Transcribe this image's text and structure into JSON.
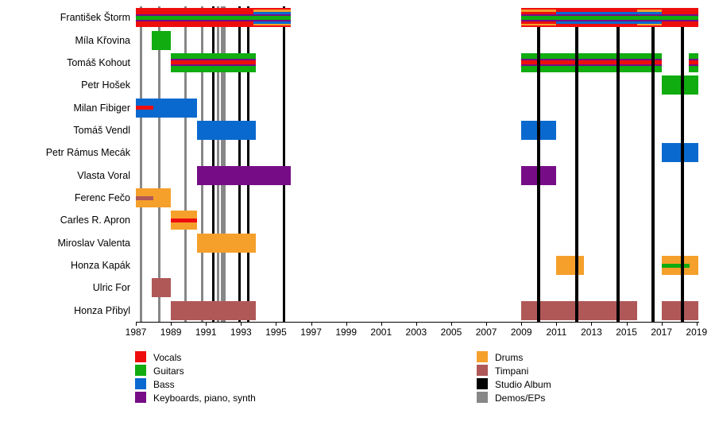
{
  "chart_data": {
    "type": "timeline",
    "description": "Band membership timeline: members on y-axis, years on x-axis, colored bars for instrument roles, vertical lines for releases",
    "axis": {
      "start": 1987,
      "end": 2019.1,
      "tick_years": [
        1987,
        1989,
        1991,
        1993,
        1995,
        1997,
        1999,
        2001,
        2003,
        2005,
        2007,
        2009,
        2011,
        2013,
        2015,
        2017,
        2019
      ]
    },
    "colors": {
      "vocals": "#ee0d0d",
      "guitars": "#10ac10",
      "bass": "#0a69cf",
      "keyboards": "#760d86",
      "drums": "#f5a02b",
      "timpani": "#b05858",
      "album": "#000000",
      "demo": "#878787"
    },
    "rows": [
      {
        "name": "František Štorm",
        "bars": [
          {
            "role": "vocals",
            "from": 1987,
            "to": 1995.85,
            "stripes": [
              {
                "role": "keyboards",
                "slot": "inner",
                "from": 1987,
                "to": 1995.85
              },
              {
                "role": "guitars",
                "slot": "center",
                "from": 1987,
                "to": 1995.85
              },
              {
                "role": "bass",
                "slot": "mid",
                "from": 1993.7,
                "to": 1995.85
              },
              {
                "role": "drums",
                "slot": "outer",
                "from": 1993.7,
                "to": 1995.85
              }
            ]
          },
          {
            "role": "vocals",
            "from": 2009,
            "to": 2019.1,
            "stripes": [
              {
                "role": "keyboards",
                "slot": "inner",
                "from": 2009,
                "to": 2019.1
              },
              {
                "role": "guitars",
                "slot": "center",
                "from": 2009,
                "to": 2019.1
              },
              {
                "role": "drums",
                "slot": "outer",
                "from": 2009,
                "to": 2011
              },
              {
                "role": "bass",
                "slot": "mid",
                "from": 2011,
                "to": 2017
              },
              {
                "role": "drums",
                "slot": "outer",
                "from": 2015.6,
                "to": 2017
              }
            ]
          }
        ]
      },
      {
        "name": "Míla Křovina",
        "bars": [
          {
            "role": "guitars",
            "from": 1987.9,
            "to": 1989.0,
            "stripes": []
          }
        ]
      },
      {
        "name": "Tomáš Kohout",
        "bars": [
          {
            "role": "guitars",
            "from": 1989.0,
            "to": 1993.85,
            "stripes": [
              {
                "role": "keyboards",
                "slot": "inner",
                "from": 1989.0,
                "to": 1993.85
              },
              {
                "role": "vocals",
                "slot": "center",
                "from": 1989.0,
                "to": 1993.85
              }
            ]
          },
          {
            "role": "guitars",
            "from": 2009,
            "to": 2017.0,
            "stripes": [
              {
                "role": "keyboards",
                "slot": "inner",
                "from": 2009,
                "to": 2017.0
              },
              {
                "role": "vocals",
                "slot": "center",
                "from": 2009,
                "to": 2017.0
              }
            ]
          },
          {
            "role": "guitars",
            "from": 2018.55,
            "to": 2019.1,
            "stripes": [
              {
                "role": "keyboards",
                "slot": "inner",
                "from": 2018.55,
                "to": 2019.1
              },
              {
                "role": "vocals",
                "slot": "center",
                "from": 2018.55,
                "to": 2019.1
              }
            ]
          }
        ]
      },
      {
        "name": "Petr Hošek",
        "bars": [
          {
            "role": "guitars",
            "from": 2017.0,
            "to": 2019.1,
            "stripes": []
          }
        ]
      },
      {
        "name": "Milan Fibiger",
        "bars": [
          {
            "role": "bass",
            "from": 1987,
            "to": 1990.5,
            "stripes": [
              {
                "role": "vocals",
                "slot": "center",
                "from": 1987,
                "to": 1988.0
              }
            ]
          }
        ]
      },
      {
        "name": "Tomáš Vendl",
        "bars": [
          {
            "role": "bass",
            "from": 1990.5,
            "to": 1993.85,
            "stripes": []
          },
          {
            "role": "bass",
            "from": 2009,
            "to": 2011.0,
            "stripes": []
          }
        ]
      },
      {
        "name": "Petr Rámus Mecák",
        "bars": [
          {
            "role": "bass",
            "from": 2017.0,
            "to": 2019.1,
            "stripes": []
          }
        ]
      },
      {
        "name": "Vlasta Voral",
        "bars": [
          {
            "role": "keyboards",
            "from": 1990.5,
            "to": 1995.85,
            "stripes": []
          },
          {
            "role": "keyboards",
            "from": 2009,
            "to": 2011.0,
            "stripes": []
          }
        ]
      },
      {
        "name": "Ferenc Fečo",
        "bars": [
          {
            "role": "drums",
            "from": 1987,
            "to": 1989.0,
            "stripes": [
              {
                "role": "timpani",
                "slot": "center",
                "from": 1987,
                "to": 1988.0
              }
            ]
          }
        ]
      },
      {
        "name": "Carles R. Apron",
        "bars": [
          {
            "role": "drums",
            "from": 1989.0,
            "to": 1990.5,
            "stripes": [
              {
                "role": "vocals",
                "slot": "center",
                "from": 1989.0,
                "to": 1990.5
              }
            ]
          }
        ]
      },
      {
        "name": "Miroslav Valenta",
        "bars": [
          {
            "role": "drums",
            "from": 1990.5,
            "to": 1993.85,
            "stripes": []
          }
        ]
      },
      {
        "name": "Honza Kapák",
        "bars": [
          {
            "role": "drums",
            "from": 2011.0,
            "to": 2012.55,
            "stripes": []
          },
          {
            "role": "drums",
            "from": 2017.0,
            "to": 2019.1,
            "stripes": [
              {
                "role": "guitars",
                "slot": "center",
                "from": 2017.0,
                "to": 2018.6
              }
            ]
          }
        ]
      },
      {
        "name": "Ulric For",
        "bars": [
          {
            "role": "timpani",
            "from": 1987.9,
            "to": 1989.0,
            "stripes": []
          }
        ]
      },
      {
        "name": "Honza Přibyl",
        "bars": [
          {
            "role": "timpani",
            "from": 1989.0,
            "to": 1993.85,
            "stripes": []
          },
          {
            "role": "timpani",
            "from": 2009,
            "to": 2015.6,
            "stripes": []
          },
          {
            "role": "timpani",
            "from": 2017.0,
            "to": 2019.1,
            "stripes": []
          }
        ]
      }
    ],
    "lines": {
      "demos_back": [
        1987.3,
        1988.35,
        1989.85,
        1990.8,
        1991.7,
        1991.9,
        1992.05
      ],
      "albums_back": [
        1991.4,
        1992.9,
        1993.4,
        1995.45
      ],
      "albums_front": [
        2010.0,
        2012.15,
        2014.5,
        2016.5,
        2018.2
      ]
    }
  },
  "legend": {
    "column1": [
      {
        "role": "vocals",
        "label": "Vocals"
      },
      {
        "role": "guitars",
        "label": "Guitars"
      },
      {
        "role": "bass",
        "label": "Bass"
      },
      {
        "role": "keyboards",
        "label": "Keyboards, piano, synth"
      }
    ],
    "column2": [
      {
        "role": "drums",
        "label": "Drums"
      },
      {
        "role": "timpani",
        "label": "Timpani"
      },
      {
        "role": "album",
        "label": "Studio Album"
      },
      {
        "role": "demo",
        "label": "Demos/EPs"
      }
    ]
  }
}
